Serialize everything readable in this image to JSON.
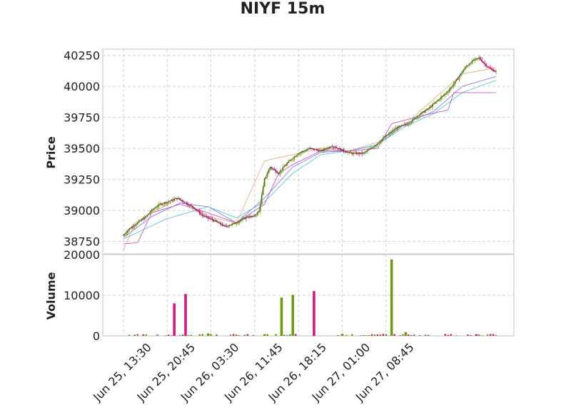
{
  "chart_data": {
    "type": "candlestick",
    "title": "NIYF 15m",
    "price_panel": {
      "ylabel": "Price",
      "ylim": [
        38650,
        40300
      ],
      "yticks": [
        38750,
        39000,
        39250,
        39500,
        39750,
        40000,
        40250
      ],
      "ytick_labels": [
        "38750",
        "39000",
        "39250",
        "39500",
        "39750",
        "40000",
        "40250"
      ],
      "close_path": [
        [
          0,
          38800
        ],
        [
          4,
          38850
        ],
        [
          10,
          38900
        ],
        [
          16,
          38950
        ],
        [
          20,
          39000
        ],
        [
          26,
          39050
        ],
        [
          32,
          39070
        ],
        [
          38,
          39100
        ],
        [
          44,
          39060
        ],
        [
          50,
          39020
        ],
        [
          56,
          38960
        ],
        [
          64,
          38920
        ],
        [
          72,
          38870
        ],
        [
          80,
          38900
        ],
        [
          88,
          38950
        ],
        [
          92,
          38950
        ],
        [
          96,
          38990
        ],
        [
          100,
          39250
        ],
        [
          104,
          39350
        ],
        [
          110,
          39300
        ],
        [
          116,
          39380
        ],
        [
          124,
          39460
        ],
        [
          132,
          39500
        ],
        [
          140,
          39480
        ],
        [
          148,
          39520
        ],
        [
          156,
          39480
        ],
        [
          162,
          39460
        ],
        [
          170,
          39460
        ],
        [
          178,
          39520
        ],
        [
          186,
          39600
        ],
        [
          194,
          39670
        ],
        [
          202,
          39700
        ],
        [
          208,
          39760
        ],
        [
          216,
          39820
        ],
        [
          224,
          39900
        ],
        [
          230,
          39960
        ],
        [
          236,
          40050
        ],
        [
          242,
          40150
        ],
        [
          248,
          40210
        ],
        [
          252,
          40230
        ],
        [
          256,
          40180
        ],
        [
          260,
          40140
        ],
        [
          264,
          40120
        ]
      ],
      "moving_averages": [
        {
          "color": "#7c6cf0",
          "points": [
            [
              0,
              38780
            ],
            [
              20,
              38950
            ],
            [
              40,
              39060
            ],
            [
              60,
              39030
            ],
            [
              80,
              38900
            ],
            [
              100,
              39100
            ],
            [
              120,
              39350
            ],
            [
              140,
              39470
            ],
            [
              160,
              39480
            ],
            [
              180,
              39530
            ],
            [
              200,
              39700
            ],
            [
              220,
              39800
            ],
            [
              240,
              40000
            ],
            [
              264,
              40080
            ]
          ]
        },
        {
          "color": "#3fc3d6",
          "points": [
            [
              0,
              38770
            ],
            [
              30,
              38930
            ],
            [
              60,
              39030
            ],
            [
              80,
              38940
            ],
            [
              100,
              39070
            ],
            [
              120,
              39300
            ],
            [
              140,
              39450
            ],
            [
              160,
              39480
            ],
            [
              180,
              39530
            ],
            [
              200,
              39680
            ],
            [
              220,
              39780
            ],
            [
              240,
              39950
            ],
            [
              264,
              40050
            ]
          ]
        },
        {
          "color": "#c448c4",
          "points": [
            [
              0,
              38730
            ],
            [
              10,
              38740
            ],
            [
              20,
              38980
            ],
            [
              40,
              39050
            ],
            [
              60,
              38980
            ],
            [
              80,
              38900
            ],
            [
              100,
              39050
            ],
            [
              110,
              39300
            ],
            [
              120,
              39370
            ],
            [
              140,
              39480
            ],
            [
              160,
              39480
            ],
            [
              180,
              39500
            ],
            [
              190,
              39700
            ],
            [
              210,
              39760
            ],
            [
              230,
              39810
            ],
            [
              234,
              39950
            ],
            [
              264,
              39950
            ]
          ]
        },
        {
          "color": "#e8a37a",
          "points": [
            [
              0,
              38680
            ],
            [
              8,
              38900
            ],
            [
              20,
              38980
            ],
            [
              40,
              39100
            ],
            [
              60,
              38950
            ],
            [
              80,
              38900
            ],
            [
              100,
              39400
            ],
            [
              120,
              39450
            ],
            [
              140,
              39500
            ],
            [
              160,
              39480
            ],
            [
              180,
              39550
            ],
            [
              200,
              39700
            ],
            [
              220,
              39900
            ],
            [
              240,
              40100
            ],
            [
              264,
              40150
            ]
          ]
        }
      ]
    },
    "volume_panel": {
      "ylabel": "Volume",
      "ylim": [
        0,
        20000
      ],
      "yticks": [
        0,
        10000,
        20000
      ],
      "ytick_labels": [
        "0",
        "10000",
        "20000"
      ],
      "bars": [
        {
          "i": 36,
          "v": 8000,
          "up": false
        },
        {
          "i": 44,
          "v": 10300,
          "up": false
        },
        {
          "i": 112,
          "v": 9400,
          "up": true
        },
        {
          "i": 120,
          "v": 10100,
          "up": true
        },
        {
          "i": 135,
          "v": 11000,
          "up": false
        },
        {
          "i": 190,
          "v": 18800,
          "up": true
        },
        {
          "i": 60,
          "v": 600,
          "up": true
        },
        {
          "i": 100,
          "v": 400,
          "up": true
        },
        {
          "i": 155,
          "v": 500,
          "up": true
        },
        {
          "i": 200,
          "v": 900,
          "up": true
        },
        {
          "i": 250,
          "v": 400,
          "up": false
        }
      ]
    },
    "x_axis": {
      "n_bars": 265,
      "tick_indices": [
        0,
        31,
        62,
        93,
        124,
        155,
        186
      ],
      "tick_labels": [
        "Jun 25, 13:30",
        "Jun 25, 20:45",
        "Jun 26, 03:30",
        "Jun 26, 11:45",
        "Jun 26, 18:15",
        "Jun 27, 01:00",
        "Jun 27, 08:45"
      ]
    },
    "colors": {
      "up": "#6d9a0f",
      "down": "#d6177e",
      "close_line": "#2b2b2b"
    },
    "grid": true
  }
}
